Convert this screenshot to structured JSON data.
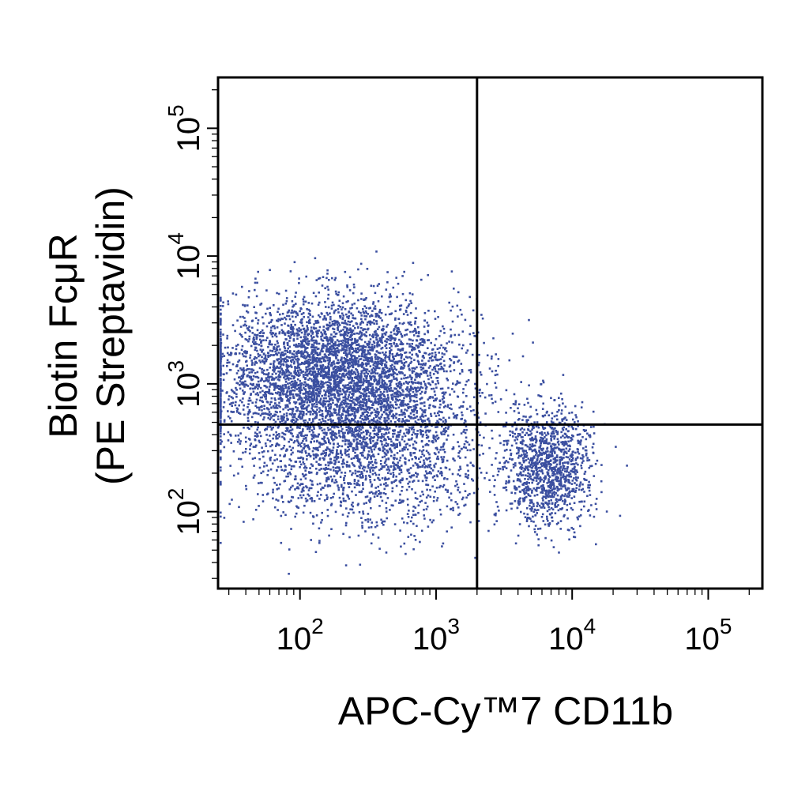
{
  "chart_data": {
    "type": "scatter",
    "title": "",
    "xlabel": "APC-Cy™7 CD11b",
    "ylabel_line1": "Biotin  FcμR",
    "ylabel_line2": "(PE Streptavidin)",
    "xscale": "log",
    "yscale": "log",
    "xlim": [
      25,
      250000
    ],
    "ylim": [
      25,
      250000
    ],
    "x_ticks": [
      {
        "base": "10",
        "exp": "2",
        "value": 100
      },
      {
        "base": "10",
        "exp": "3",
        "value": 1000
      },
      {
        "base": "10",
        "exp": "4",
        "value": 10000
      },
      {
        "base": "10",
        "exp": "5",
        "value": 100000
      }
    ],
    "y_ticks": [
      {
        "base": "10",
        "exp": "2",
        "value": 100
      },
      {
        "base": "10",
        "exp": "3",
        "value": 1000
      },
      {
        "base": "10",
        "exp": "4",
        "value": 10000
      },
      {
        "base": "10",
        "exp": "5",
        "value": 100000
      }
    ],
    "quadrant_gates": {
      "x": 2000,
      "y": 480
    },
    "dot_color": "#3b4fa0",
    "grid": false,
    "legend": "none",
    "populations": [
      {
        "center_x": 180,
        "center_y": 1300,
        "spread_x_decades": 0.45,
        "spread_y_decades": 0.28,
        "events": 4200
      },
      {
        "center_x": 300,
        "center_y": 300,
        "spread_x_decades": 0.45,
        "spread_y_decades": 0.3,
        "events": 2000
      },
      {
        "center_x": 6500,
        "center_y": 230,
        "spread_x_decades": 0.16,
        "spread_y_decades": 0.22,
        "events": 1200
      }
    ]
  }
}
